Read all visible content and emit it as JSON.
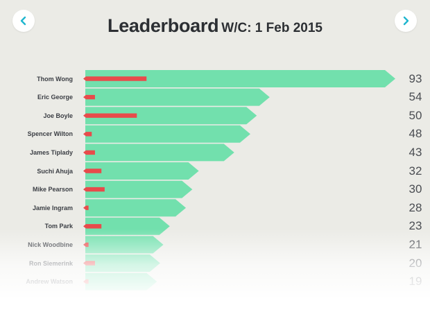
{
  "header": {
    "title": "Leaderboard",
    "subtitle": "W/C: 1 Feb 2015",
    "prev_icon": "chevron-left-icon",
    "next_icon": "chevron-right-icon"
  },
  "colors": {
    "bar": "#72e0ad",
    "marker": "#e84b4b",
    "accent": "#1fb6cf",
    "background": "#ebebe6"
  },
  "chart_data": {
    "type": "bar",
    "scale_max": 93,
    "categories": [
      "Thom Wong",
      "Eric George",
      "Joe Boyle",
      "Spencer Wilton",
      "James Tiplady",
      "Suchi Ahuja",
      "Mike Pearson",
      "Jamie Ingram",
      "Tom Park",
      "Nick Woodbine",
      "Ron Siemerink",
      "Andrew Watson"
    ],
    "series": [
      {
        "values": [
          93,
          54,
          50,
          48,
          43,
          32,
          30,
          28,
          23,
          21,
          20,
          19
        ]
      },
      {
        "values": [
          19,
          3,
          16,
          2,
          3,
          5,
          6,
          1,
          5,
          1,
          3,
          1
        ]
      }
    ]
  }
}
